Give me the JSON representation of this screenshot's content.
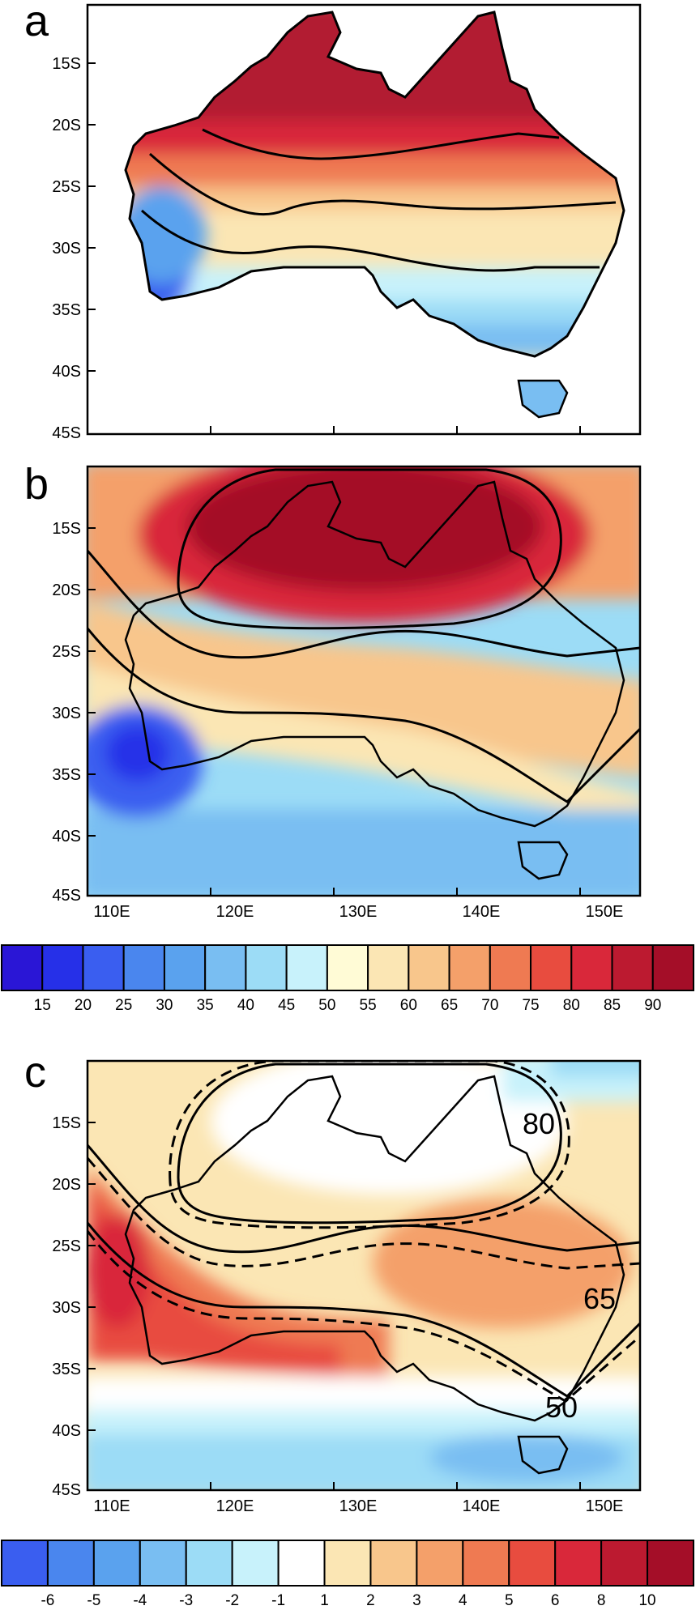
{
  "panels": [
    {
      "letter": "a",
      "lat_ticks": [
        "15S",
        "20S",
        "25S",
        "30S",
        "35S",
        "40S",
        "45S"
      ],
      "lon_ticks": []
    },
    {
      "letter": "b",
      "lat_ticks": [
        "15S",
        "20S",
        "25S",
        "30S",
        "35S",
        "40S",
        "45S"
      ],
      "lon_ticks": [
        "110E",
        "120E",
        "130E",
        "140E",
        "150E"
      ]
    },
    {
      "letter": "c",
      "lat_ticks": [
        "15S",
        "20S",
        "25S",
        "30S",
        "35S",
        "40S",
        "45S"
      ],
      "lon_ticks": [
        "110E",
        "120E",
        "130E",
        "140E",
        "150E"
      ],
      "contour_labels": [
        "80",
        "65",
        "50"
      ]
    }
  ],
  "colorbar_1": {
    "labels": [
      "15",
      "20",
      "25",
      "30",
      "35",
      "40",
      "45",
      "50",
      "55",
      "60",
      "65",
      "70",
      "75",
      "80",
      "85",
      "90"
    ],
    "colors": [
      "#2a16d6",
      "#2630e8",
      "#3a5ef0",
      "#4a86ee",
      "#5aa2ee",
      "#79bef2",
      "#9cdcf6",
      "#c8f2fb",
      "#fffbd6",
      "#fbe6b4",
      "#f8c68c",
      "#f4a06a",
      "#ef7a52",
      "#e84c3f",
      "#d9283a",
      "#bc1a30",
      "#a40e28"
    ]
  },
  "colorbar_2": {
    "labels": [
      "-6",
      "-5",
      "-4",
      "-3",
      "-2",
      "-1",
      "1",
      "2",
      "3",
      "4",
      "5",
      "6",
      "8",
      "10"
    ],
    "colors": [
      "#3a5ef0",
      "#4a86ee",
      "#5aa2ee",
      "#79bef2",
      "#9cdcf6",
      "#c8f2fb",
      "#ffffff",
      "#fbe6b4",
      "#f8c68c",
      "#f4a06a",
      "#ef7a52",
      "#e84c3f",
      "#d9283a",
      "#bc1a30",
      "#a40e28"
    ]
  }
}
